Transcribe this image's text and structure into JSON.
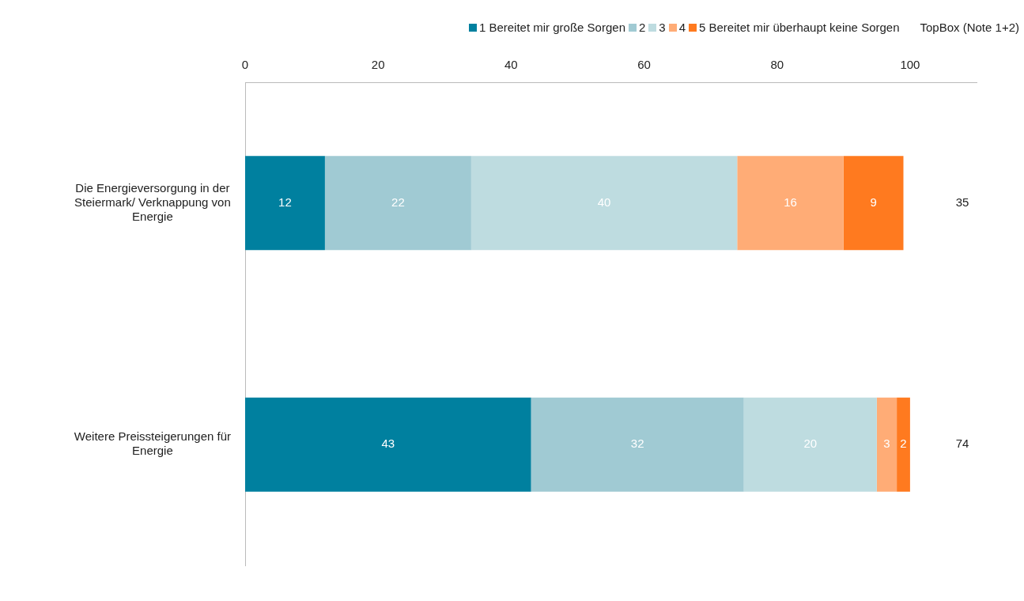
{
  "chart_data": {
    "type": "bar",
    "orientation": "horizontal",
    "stacked": true,
    "categories": [
      "Die Energieversorgung in der Steiermark/ Verknappung von Energie",
      "Weitere Preissteigerungen für Energie"
    ],
    "series": [
      {
        "name": "1 Bereitet mir große Sorgen",
        "color": "#00809f",
        "values": [
          12,
          43
        ]
      },
      {
        "name": "2",
        "color": "#a0cad3",
        "values": [
          22,
          32
        ]
      },
      {
        "name": "3",
        "color": "#bedce0",
        "values": [
          40,
          20
        ]
      },
      {
        "name": "4",
        "color": "#ffac76",
        "values": [
          16,
          3
        ]
      },
      {
        "name": "5 Bereitet mir überhaupt keine Sorgen",
        "color": "#ff7a1f",
        "values": [
          9,
          2
        ]
      }
    ],
    "xlim": [
      0,
      110
    ],
    "xticks": [
      0,
      20,
      40,
      60,
      80,
      100
    ],
    "data_labels": true,
    "grid": false,
    "legend": "top right",
    "annotations": [
      "TopBox (Note 1+2)",
      "35",
      "74"
    ]
  }
}
